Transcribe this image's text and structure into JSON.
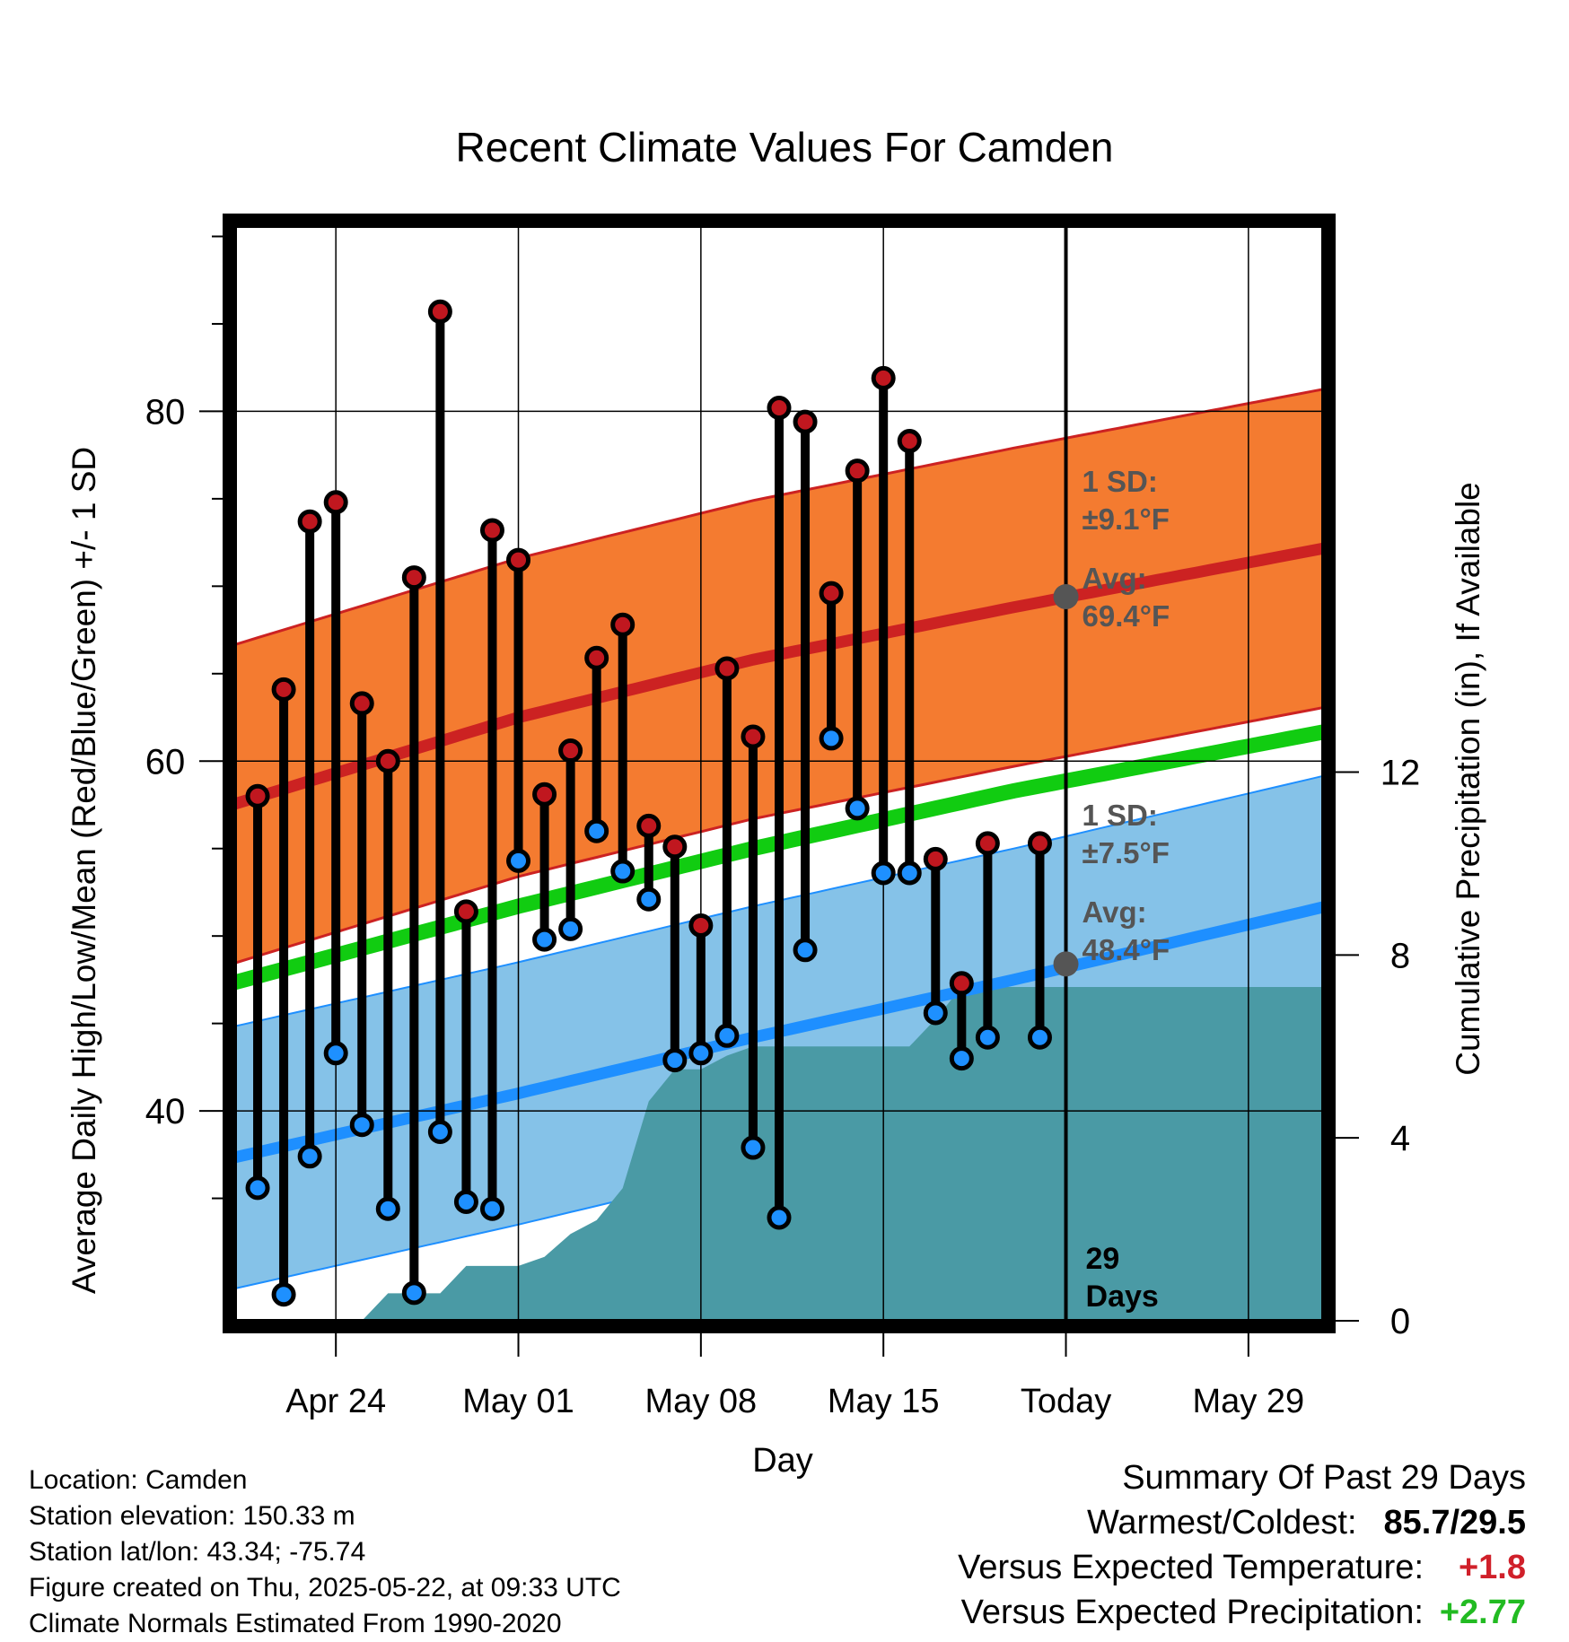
{
  "chart_data": {
    "type": "line",
    "title": "Recent Climate Values For Camden",
    "xlabel": "Day",
    "ylabel": "Average Daily High/Low/Mean (Red/Blue/Green) +/- 1 SD",
    "y2label": "Cumulative Precipitation (in), If Available",
    "x_range": [
      "2025-04-20",
      "2025-06-01"
    ],
    "ylim": [
      28,
      91
    ],
    "y_ticks": [
      40,
      60,
      80
    ],
    "y2lim": [
      0,
      24.1
    ],
    "y2_ticks": [
      0,
      4,
      8,
      12
    ],
    "x_ticks": [
      {
        "date": "2025-04-24",
        "label": "Apr 24"
      },
      {
        "date": "2025-05-01",
        "label": "May 01"
      },
      {
        "date": "2025-05-08",
        "label": "May 08"
      },
      {
        "date": "2025-05-15",
        "label": "May 15"
      },
      {
        "date": "2025-05-22",
        "label": "Today"
      },
      {
        "date": "2025-05-29",
        "label": "May 29"
      }
    ],
    "grid": true,
    "today": "2025-05-22",
    "days_label": [
      "29",
      "Days"
    ],
    "normal_high": {
      "x": [
        "2025-04-20",
        "2025-05-01",
        "2025-05-10",
        "2025-05-20",
        "2025-06-01"
      ],
      "avg": [
        57.5,
        62.5,
        65.8,
        68.8,
        72.2
      ],
      "sd": 9.1
    },
    "normal_low": {
      "x": [
        "2025-04-20",
        "2025-05-01",
        "2025-05-10",
        "2025-05-20",
        "2025-06-01"
      ],
      "avg": [
        37.3,
        41.0,
        44.2,
        47.5,
        51.7
      ],
      "sd": 7.5
    },
    "normal_mean": {
      "x": [
        "2025-04-20",
        "2025-05-01",
        "2025-05-10",
        "2025-05-20",
        "2025-06-01"
      ],
      "values": [
        47.3,
        51.7,
        55.0,
        58.3,
        61.7
      ]
    },
    "high_annotation": {
      "lines": [
        "1 SD:",
        "±9.1°F",
        "Avg:",
        "69.4°F"
      ],
      "avg": 69.4
    },
    "low_annotation": {
      "lines": [
        "1 SD:",
        "±7.5°F",
        "Avg:",
        "48.4°F"
      ],
      "avg": 48.4
    },
    "series": [
      {
        "name": "High",
        "dates": [
          "2025-04-21",
          "2025-04-22",
          "2025-04-23",
          "2025-04-24",
          "2025-04-25",
          "2025-04-26",
          "2025-04-27",
          "2025-04-28",
          "2025-04-29",
          "2025-04-30",
          "2025-05-01",
          "2025-05-02",
          "2025-05-03",
          "2025-05-04",
          "2025-05-05",
          "2025-05-06",
          "2025-05-07",
          "2025-05-08",
          "2025-05-09",
          "2025-05-10",
          "2025-05-11",
          "2025-05-12",
          "2025-05-13",
          "2025-05-14",
          "2025-05-15",
          "2025-05-16",
          "2025-05-17",
          "2025-05-18",
          "2025-05-19",
          "2025-05-21"
        ],
        "values": [
          58.0,
          64.1,
          73.7,
          74.8,
          63.3,
          60.0,
          70.5,
          85.7,
          51.4,
          73.2,
          71.5,
          58.1,
          60.6,
          65.9,
          67.8,
          56.3,
          55.1,
          50.6,
          65.3,
          61.4,
          80.2,
          79.4,
          69.6,
          76.6,
          81.9,
          78.3,
          54.4,
          47.3,
          55.3,
          55.3
        ],
        "color": "#c0171f"
      },
      {
        "name": "Low",
        "dates": [
          "2025-04-21",
          "2025-04-22",
          "2025-04-23",
          "2025-04-24",
          "2025-04-25",
          "2025-04-26",
          "2025-04-27",
          "2025-04-28",
          "2025-04-29",
          "2025-04-30",
          "2025-05-01",
          "2025-05-02",
          "2025-05-03",
          "2025-05-04",
          "2025-05-05",
          "2025-05-06",
          "2025-05-07",
          "2025-05-08",
          "2025-05-09",
          "2025-05-10",
          "2025-05-11",
          "2025-05-12",
          "2025-05-13",
          "2025-05-14",
          "2025-05-15",
          "2025-05-16",
          "2025-05-17",
          "2025-05-18",
          "2025-05-19",
          "2025-05-21"
        ],
        "values": [
          35.6,
          29.5,
          37.4,
          43.3,
          39.2,
          34.4,
          29.6,
          38.8,
          34.8,
          34.4,
          54.3,
          49.8,
          50.4,
          56.0,
          53.7,
          52.1,
          42.9,
          43.3,
          44.3,
          37.9,
          33.9,
          49.2,
          61.3,
          57.3,
          53.6,
          53.6,
          45.6,
          43.0,
          44.2,
          44.2
        ],
        "color": "#1e90ff"
      }
    ],
    "precipitation": {
      "dates": [
        "2025-04-21",
        "2025-04-22",
        "2025-04-23",
        "2025-04-24",
        "2025-04-25",
        "2025-04-26",
        "2025-04-27",
        "2025-04-28",
        "2025-04-29",
        "2025-04-30",
        "2025-05-01",
        "2025-05-02",
        "2025-05-03",
        "2025-05-04",
        "2025-05-05",
        "2025-05-06",
        "2025-05-07",
        "2025-05-08",
        "2025-05-09",
        "2025-05-10",
        "2025-05-11",
        "2025-05-12",
        "2025-05-13",
        "2025-05-14",
        "2025-05-15",
        "2025-05-16",
        "2025-05-17",
        "2025-05-18",
        "2025-05-19",
        "2025-05-20",
        "2025-05-21",
        "2025-05-22",
        "2025-06-01"
      ],
      "values": [
        0,
        0,
        0,
        0,
        0.0,
        0.6,
        0.6,
        0.6,
        1.2,
        1.2,
        1.2,
        1.4,
        1.9,
        2.2,
        2.9,
        4.8,
        5.5,
        5.5,
        5.8,
        6.0,
        6.0,
        6.0,
        6.0,
        6.0,
        6.0,
        6.0,
        6.6,
        7.3,
        7.3,
        7.3,
        7.3,
        7.3,
        7.3
      ],
      "color": "#4a9aa5"
    }
  },
  "footer": {
    "location": "Location: Camden",
    "elevation": "Station elevation: 150.33 m",
    "latlon": "Station lat/lon: 43.34; -75.74",
    "created": "Figure created on Thu, 2025-05-22, at 09:33 UTC",
    "normals": "Climate Normals Estimated From 1990-2020"
  },
  "summary": {
    "title": "Summary Of Past 29 Days",
    "warm_cold_label": "Warmest/Coldest:",
    "warm_cold_value": "85.7/29.5",
    "temp_label": "Versus Expected Temperature:",
    "temp_value": "+1.8",
    "temp_color": "#d0202a",
    "precip_label": "Versus Expected Precipitation:",
    "precip_value": "+2.77",
    "precip_color": "#22bb22"
  },
  "colors": {
    "high_band": "#f47b30",
    "high_line": "#cc2222",
    "low_band": "#85c2e8",
    "low_line": "#1e8fff",
    "mean_line": "#11cc11",
    "annotation": "#555555"
  }
}
